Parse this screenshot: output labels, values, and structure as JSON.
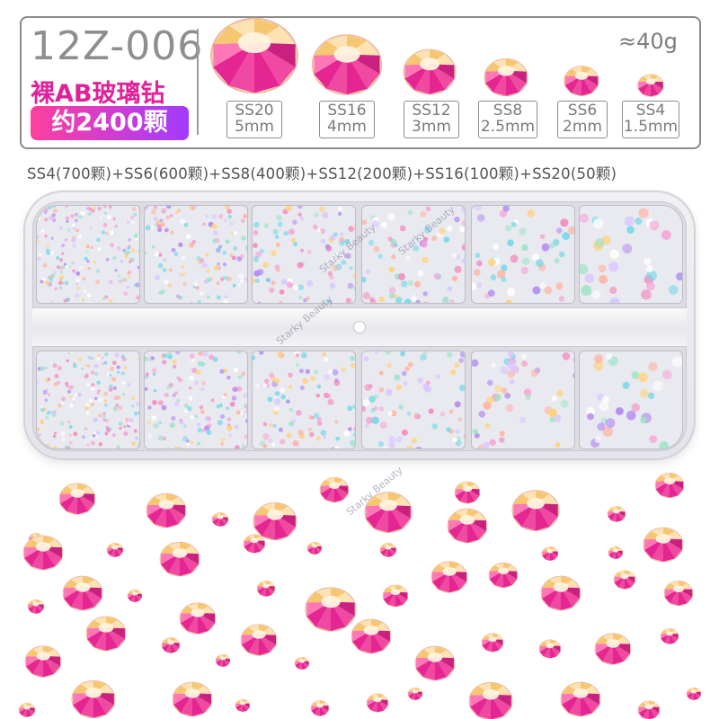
{
  "product": {
    "code": "12Z-006",
    "name": "裸AB玻璃钻",
    "count": "约2400颗",
    "weight": "≈40g"
  },
  "sizes": [
    {
      "ss": "SS20",
      "mm": "5mm",
      "diameter_mm": 5
    },
    {
      "ss": "SS16",
      "mm": "4mm",
      "diameter_mm": 4
    },
    {
      "ss": "SS12",
      "mm": "3mm",
      "diameter_mm": 3
    },
    {
      "ss": "SS8",
      "mm": "2.5mm",
      "diameter_mm": 2.5
    },
    {
      "ss": "SS6",
      "mm": "2mm",
      "diameter_mm": 2
    },
    {
      "ss": "SS4",
      "mm": "1.5mm",
      "diameter_mm": 1.5
    }
  ],
  "breakdown": "SS4(700颗)+SS6(600颗)+SS8(400颗)+SS12(200颗)+SS16(100颗)+SS20(50颗)",
  "watermark": "Starky Beauty",
  "colors": {
    "accent_pink": "#e0229a",
    "pill_start": "#ff3f9e",
    "pill_end": "#a13bff",
    "gem_magenta": "#e3168f",
    "gem_gold": "#f5c46b",
    "gem_peach": "#fbd7b4"
  },
  "icons": {
    "gem": "ab-rhinestone-icon"
  }
}
